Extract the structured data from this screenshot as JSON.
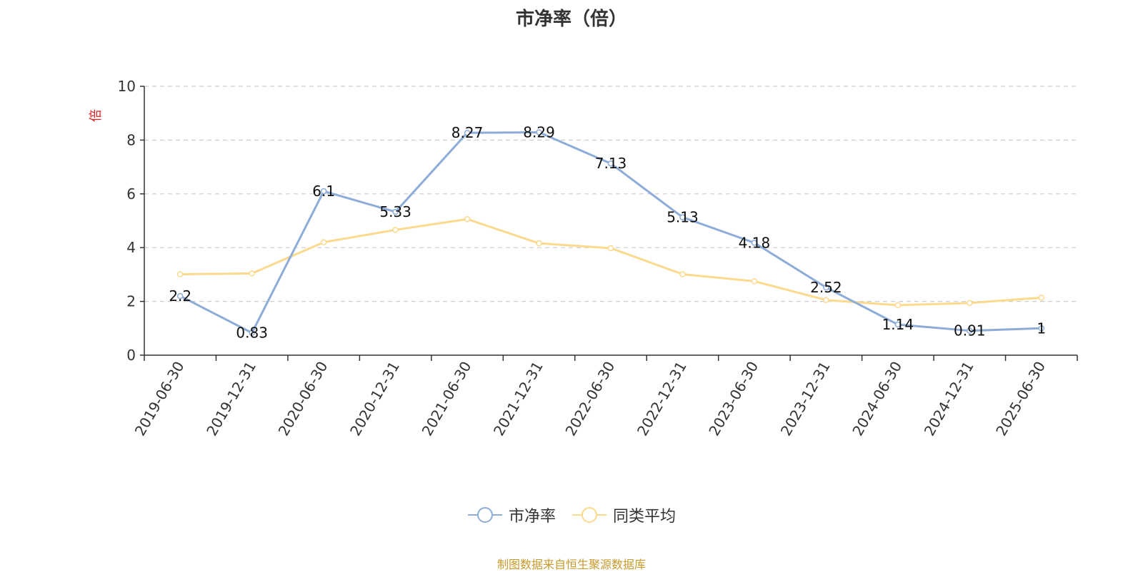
{
  "chart_data": {
    "type": "line",
    "title": "市净率（倍）",
    "ylabel": "倍",
    "ylim": [
      0,
      10
    ],
    "yticks": [
      "0",
      "2",
      "4",
      "6",
      "8",
      "10"
    ],
    "grid": true,
    "legend_position": "bottom",
    "categories": [
      "2019-06-30",
      "2019-12-31",
      "2020-06-30",
      "2020-12-31",
      "2021-06-30",
      "2021-12-31",
      "2022-06-30",
      "2022-12-31",
      "2023-06-30",
      "2023-12-31",
      "2024-06-30",
      "2024-12-31",
      "2025-06-30"
    ],
    "series": [
      {
        "name": "市净率",
        "color": "#8eacd8",
        "values": [
          2.2,
          0.83,
          6.1,
          5.33,
          8.27,
          8.29,
          7.13,
          5.13,
          4.18,
          2.52,
          1.14,
          0.91,
          1
        ],
        "labels": [
          "2.2",
          "0.83",
          "6.1",
          "5.33",
          "8.27",
          "8.29",
          "7.13",
          "5.13",
          "4.18",
          "2.52",
          "1.14",
          "0.91",
          "1"
        ]
      },
      {
        "name": "同类平均",
        "color": "#fbd98e",
        "values": [
          3.01,
          3.04,
          4.2,
          4.66,
          5.06,
          4.16,
          3.98,
          3.01,
          2.75,
          2.05,
          1.86,
          1.94,
          2.14
        ]
      }
    ]
  },
  "source_note": "制图数据来自恒生聚源数据库",
  "ylabel_color": "#e02020",
  "source_color": "#c89a2e"
}
